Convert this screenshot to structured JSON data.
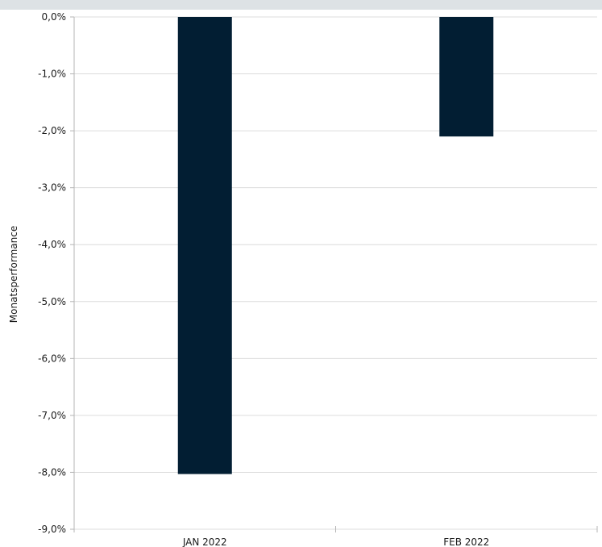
{
  "chart_data": {
    "type": "bar",
    "categories": [
      "JAN 2022",
      "FEB 2022"
    ],
    "values": [
      -8.03,
      -2.1
    ],
    "ylabel": "Monatsperformance",
    "xlabel": "",
    "ylim": [
      -9.0,
      0.0
    ],
    "yticks": [
      0.0,
      -1.0,
      -2.0,
      -3.0,
      -4.0,
      -5.0,
      -6.0,
      -7.0,
      -8.0,
      -9.0
    ],
    "ytick_labels": [
      "0,0%",
      "-1,0%",
      "-2,0%",
      "-3,0%",
      "-4,0%",
      "-5,0%",
      "-6,0%",
      "-7,0%",
      "-8,0%",
      "-9,0%"
    ],
    "grid": true,
    "bar_color": "#021e33"
  }
}
